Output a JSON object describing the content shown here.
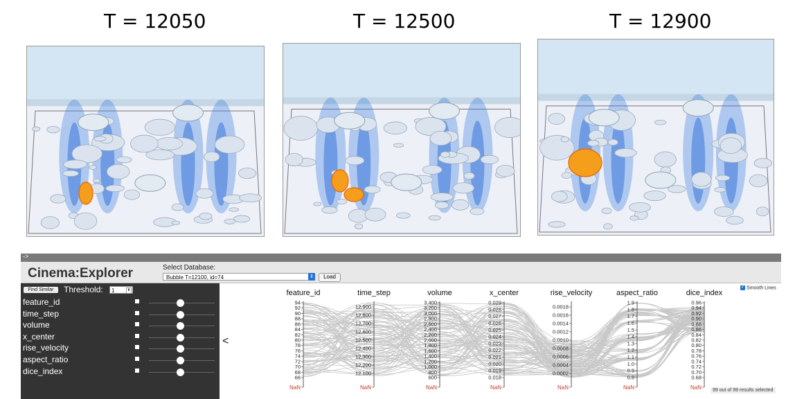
{
  "panels": [
    {
      "label": "T = 12050"
    },
    {
      "label": "T = 12500"
    },
    {
      "label": "T = 12900"
    }
  ],
  "topbar": {
    "arrow": "->"
  },
  "app": {
    "title": "Cinema:Explorer"
  },
  "database": {
    "label": "Select Database:",
    "selected": "Bubble T=12100, id=74",
    "load_label": "Load"
  },
  "sidebar": {
    "find_similar_label": "Find Similar",
    "threshold_label": "Threshold:",
    "threshold_value": "1",
    "rows": [
      {
        "label": "feature_id"
      },
      {
        "label": "time_step"
      },
      {
        "label": "volume"
      },
      {
        "label": "x_center"
      },
      {
        "label": "rise_velocity"
      },
      {
        "label": "aspect_ratio"
      },
      {
        "label": "dice_index"
      }
    ],
    "collapse_glyph": "<"
  },
  "options": {
    "smooth_lines_label": "Smooth Lines"
  },
  "status": {
    "selection_text": "99 out of 99 results selected"
  },
  "chart_data": {
    "type": "parallel-coordinates",
    "nan_label": "NaN",
    "axes": [
      {
        "name": "feature_id",
        "ticks": [
          "94",
          "92",
          "90",
          "88",
          "86",
          "84",
          "82",
          "80",
          "78",
          "76",
          "74",
          "72",
          "70",
          "68",
          "66"
        ]
      },
      {
        "name": "time_step",
        "ticks": [
          "12,900",
          "12,800",
          "12,700",
          "12,600",
          "12,500",
          "12,400",
          "12,300",
          "12,200",
          "12,100"
        ]
      },
      {
        "name": "volume",
        "ticks": [
          "3,400",
          "3,200",
          "3,000",
          "2,800",
          "2,600",
          "2,400",
          "2,200",
          "2,000",
          "1,800",
          "1,600",
          "1,400",
          "1,200",
          "1,000",
          "800",
          "600"
        ]
      },
      {
        "name": "x_center",
        "ticks": [
          "0.029",
          "0.028",
          "0.027",
          "0.026",
          "0.025",
          "0.024",
          "0.023",
          "0.022",
          "0.021",
          "0.020",
          "0.019",
          "0.018"
        ]
      },
      {
        "name": "rise_velocity",
        "ticks": [
          "0.0018",
          "0.0016",
          "0.0014",
          "0.0012",
          "0.0010",
          "0.0008",
          "0.0006",
          "0.0004",
          "0.0002"
        ]
      },
      {
        "name": "aspect_ratio",
        "ticks": [
          "1.9",
          "1.8",
          "1.7",
          "1.6",
          "1.5",
          "1.4",
          "1.3",
          "1.2",
          "1.1",
          "1.0",
          "0.9",
          "0.8"
        ]
      },
      {
        "name": "dice_index",
        "ticks": [
          "0.96",
          "0.94",
          "0.92",
          "0.90",
          "0.88",
          "0.86",
          "0.84",
          "0.82",
          "0.80",
          "0.78",
          "0.76",
          "0.74",
          "0.72",
          "0.70",
          "0.68"
        ]
      }
    ],
    "results_selected": 99,
    "results_total": 99
  }
}
